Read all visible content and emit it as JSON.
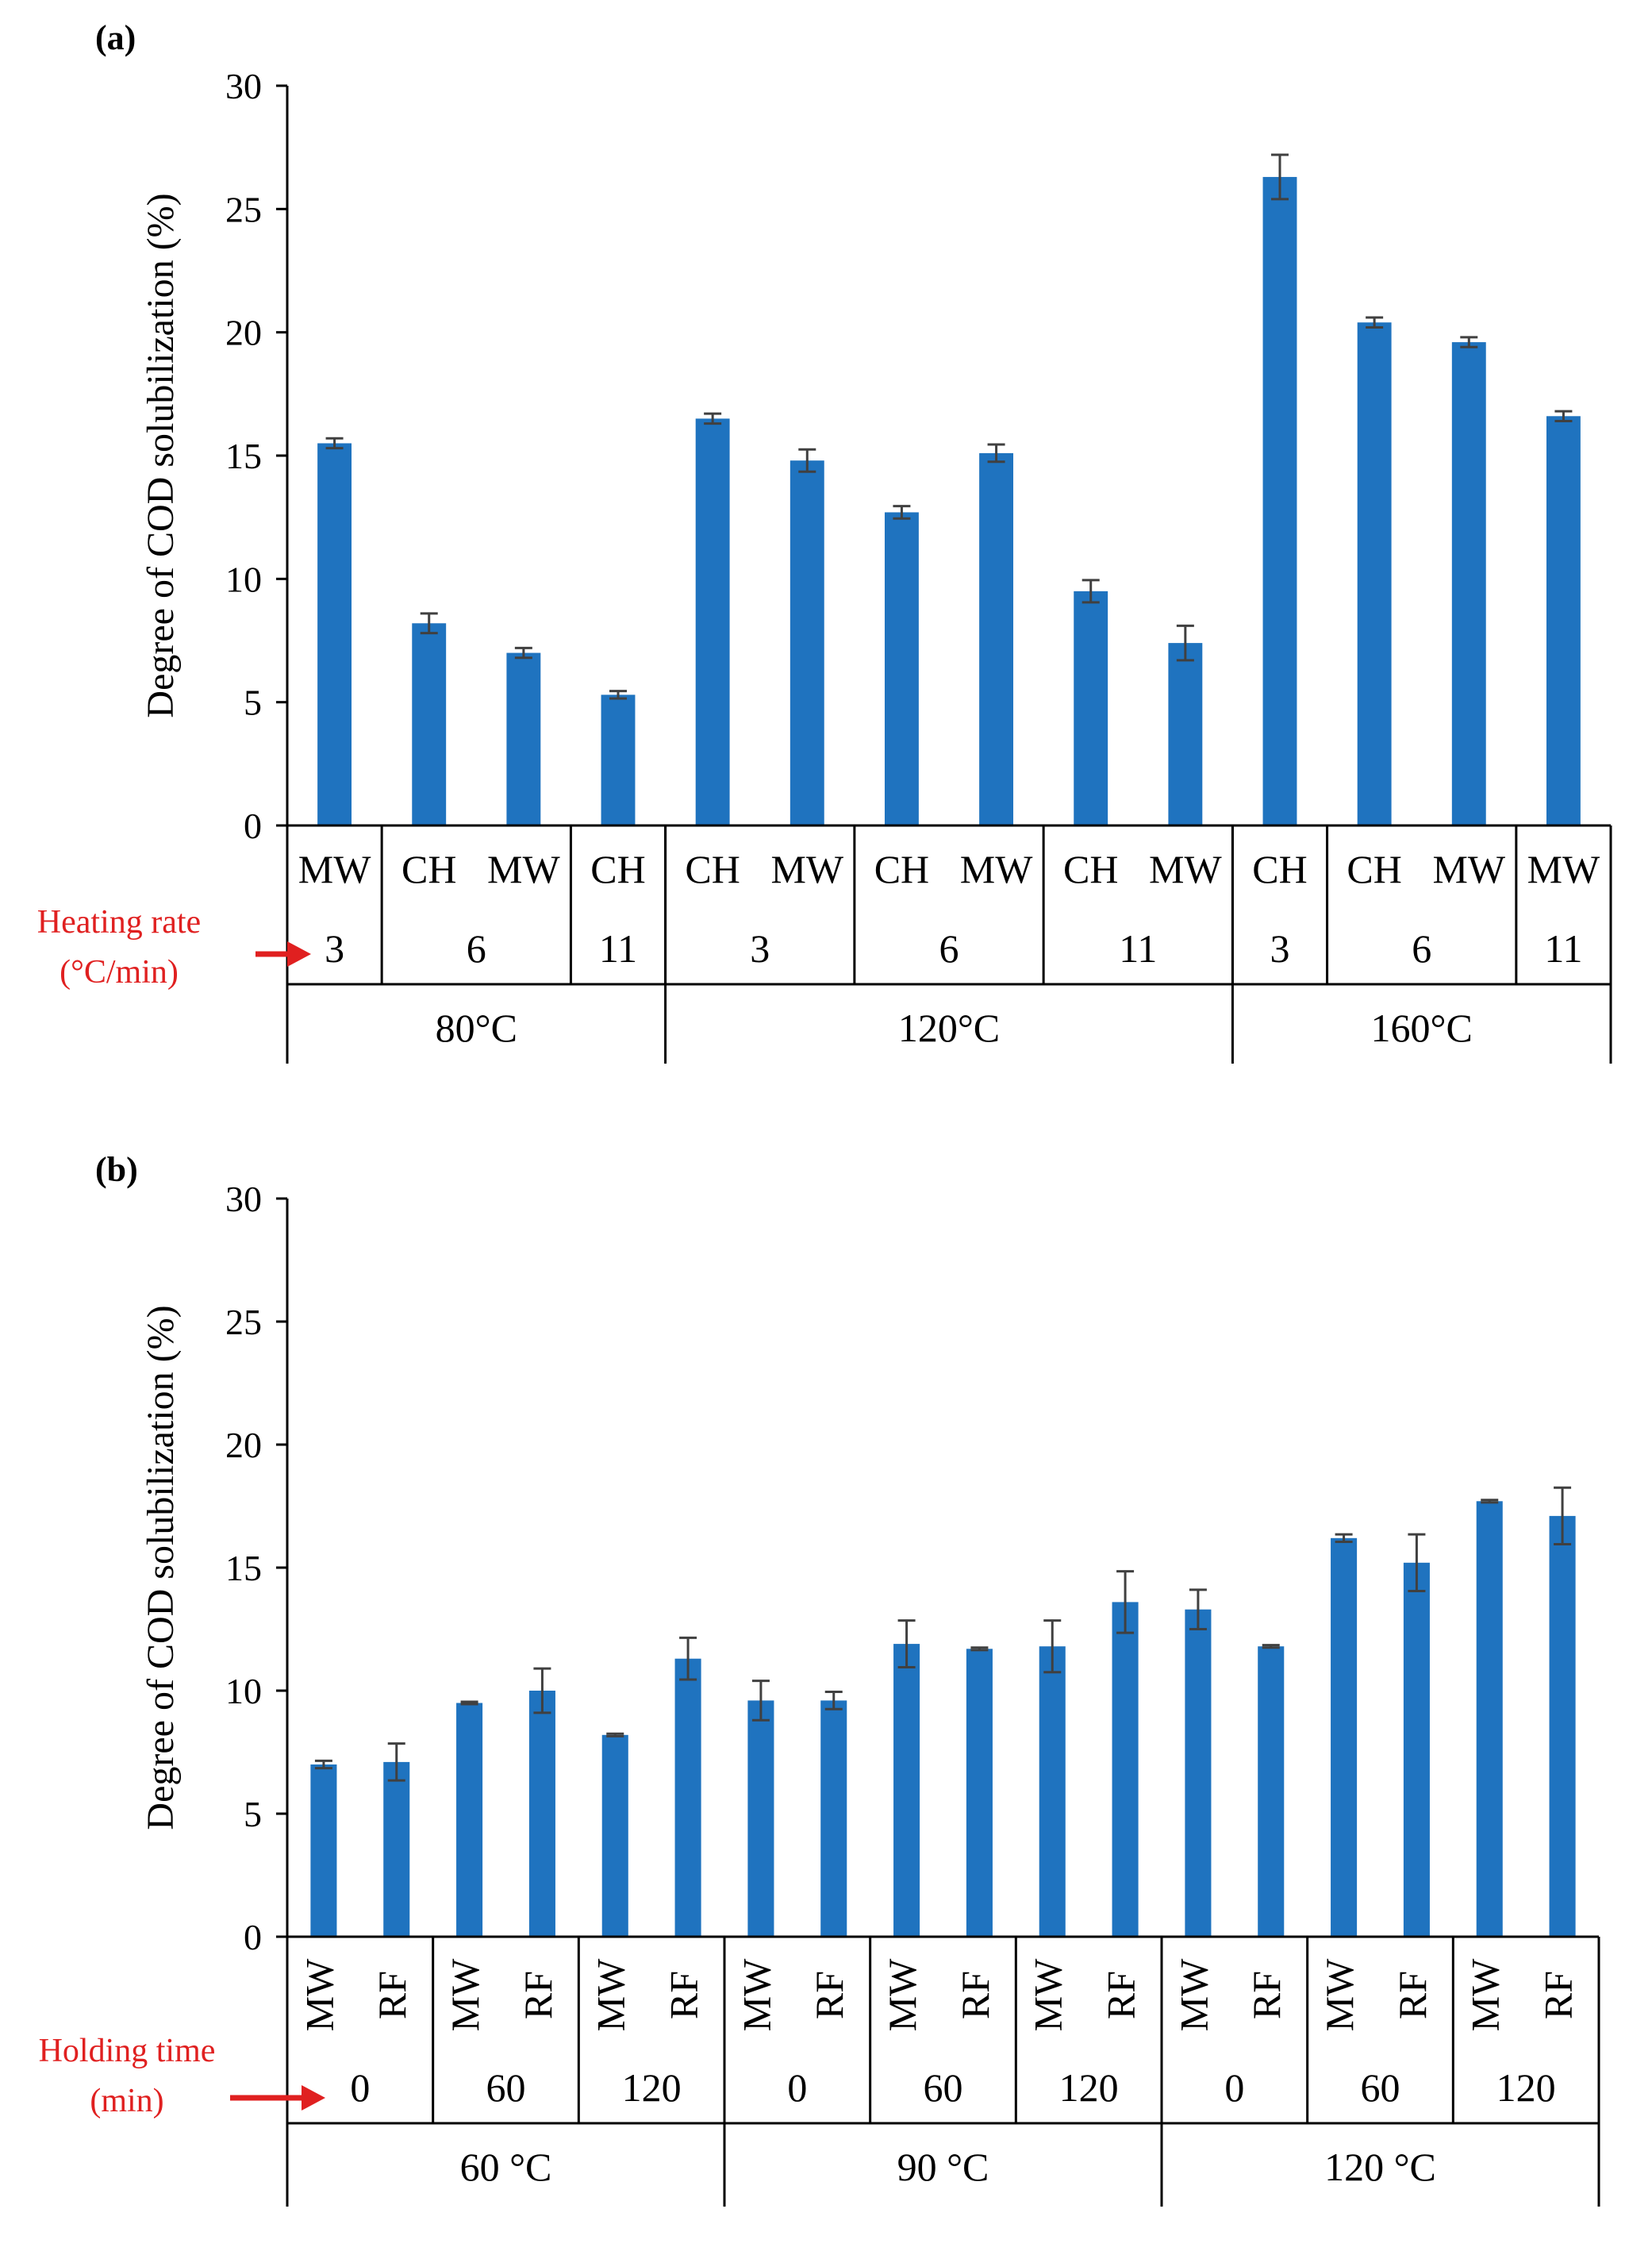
{
  "colors": {
    "bar": "#1f73bf",
    "error_bar": "#404040",
    "axis": "#000000",
    "annotation": "#e02020"
  },
  "chart_data": [
    {
      "type": "bar",
      "panel_label": "(a)",
      "ylabel": "Degree of COD solubilization (%)",
      "ylim": [
        0,
        30
      ],
      "yticks": [
        0,
        5,
        10,
        15,
        20,
        25,
        30
      ],
      "side_label": [
        "Heating rate",
        "(°C/min)"
      ],
      "levels": {
        "method": [
          "MW",
          "CH",
          "MW",
          "CH",
          "CH",
          "MW",
          "CH",
          "MW",
          "CH",
          "MW",
          "CH",
          "CH",
          "MW",
          "MW"
        ],
        "rate_groups": [
          {
            "label": "3",
            "span": 1
          },
          {
            "label": "6",
            "span": 2
          },
          {
            "label": "11",
            "span": 1
          },
          {
            "label": "3",
            "span": 2
          },
          {
            "label": "6",
            "span": 2
          },
          {
            "label": "11",
            "span": 2
          },
          {
            "label": "3",
            "span": 1
          },
          {
            "label": "6",
            "span": 2
          },
          {
            "label": "11",
            "span": 1
          }
        ],
        "temp_groups": [
          {
            "label": "80°C",
            "span": 4
          },
          {
            "label": "120°C",
            "span": 6
          },
          {
            "label": "160°C",
            "span": 4
          }
        ]
      },
      "values": [
        15.5,
        8.2,
        7.0,
        5.3,
        16.5,
        14.8,
        12.7,
        15.1,
        9.5,
        7.4,
        26.3,
        20.4,
        19.6,
        16.6
      ],
      "errors": [
        0.2,
        0.4,
        0.2,
        0.15,
        0.2,
        0.45,
        0.25,
        0.35,
        0.45,
        0.7,
        0.9,
        0.2,
        0.2,
        0.2
      ]
    },
    {
      "type": "bar",
      "panel_label": "(b)",
      "ylabel": "Degree of COD solubilization (%)",
      "ylim": [
        0,
        30
      ],
      "yticks": [
        0,
        5,
        10,
        15,
        20,
        25,
        30
      ],
      "side_label": [
        "Holding time",
        "(min)"
      ],
      "levels": {
        "method": [
          "MW",
          "RF",
          "MW",
          "RF",
          "MW",
          "RF",
          "MW",
          "RF",
          "MW",
          "RF",
          "MW",
          "RF",
          "MW",
          "RF",
          "MW",
          "RF",
          "MW",
          "RF"
        ],
        "rate_groups": [
          {
            "label": "0",
            "span": 2
          },
          {
            "label": "60",
            "span": 2
          },
          {
            "label": "120",
            "span": 2
          },
          {
            "label": "0",
            "span": 2
          },
          {
            "label": "60",
            "span": 2
          },
          {
            "label": "120",
            "span": 2
          },
          {
            "label": "0",
            "span": 2
          },
          {
            "label": "60",
            "span": 2
          },
          {
            "label": "120",
            "span": 2
          }
        ],
        "temp_groups": [
          {
            "label": "60 °C",
            "span": 6
          },
          {
            "label": "90 °C",
            "span": 6
          },
          {
            "label": "120 °C",
            "span": 6
          }
        ]
      },
      "values": [
        7.0,
        7.1,
        9.5,
        10.0,
        8.2,
        11.3,
        9.6,
        9.6,
        11.9,
        11.7,
        11.8,
        13.6,
        13.3,
        11.8,
        16.2,
        15.2,
        17.7,
        17.1
      ],
      "errors": [
        0.15,
        0.75,
        0.05,
        0.9,
        0.05,
        0.85,
        0.8,
        0.35,
        0.95,
        0.05,
        1.05,
        1.25,
        0.8,
        0.05,
        0.15,
        1.15,
        0.05,
        1.15
      ]
    }
  ]
}
